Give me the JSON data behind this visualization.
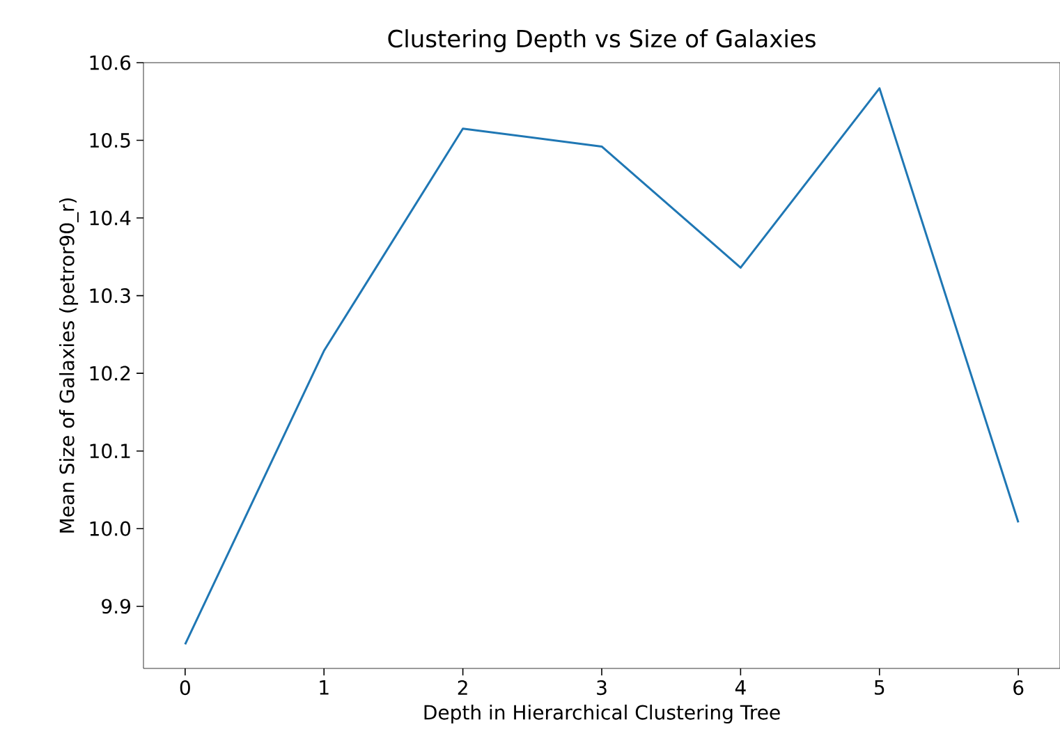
{
  "chart_data": {
    "type": "line",
    "title": "Clustering Depth vs Size of Galaxies",
    "xlabel": "Depth in Hierarchical Clustering Tree",
    "ylabel": "Mean Size of Galaxies (petror90_r)",
    "x": [
      0,
      1,
      2,
      3,
      4,
      5,
      6
    ],
    "series": [
      {
        "color": "#1f77b4",
        "values": [
          9.851,
          10.229,
          10.515,
          10.492,
          10.336,
          10.567,
          10.008
        ]
      }
    ],
    "xlim": [
      -0.3,
      6.3
    ],
    "ylim": [
      9.82,
      10.6
    ],
    "xticks": [
      0,
      1,
      2,
      3,
      4,
      5,
      6
    ],
    "yticks": [
      {
        "value": 9.9,
        "label": "9.9"
      },
      {
        "value": 10.0,
        "label": "10.0"
      },
      {
        "value": 10.1,
        "label": "10.1"
      },
      {
        "value": 10.2,
        "label": "10.2"
      },
      {
        "value": 10.3,
        "label": "10.3"
      },
      {
        "value": 10.4,
        "label": "10.4"
      },
      {
        "value": 10.5,
        "label": "10.5"
      },
      {
        "value": 10.6,
        "label": "10.6"
      }
    ],
    "grid": false,
    "marker": "none",
    "line_style": "solid"
  }
}
